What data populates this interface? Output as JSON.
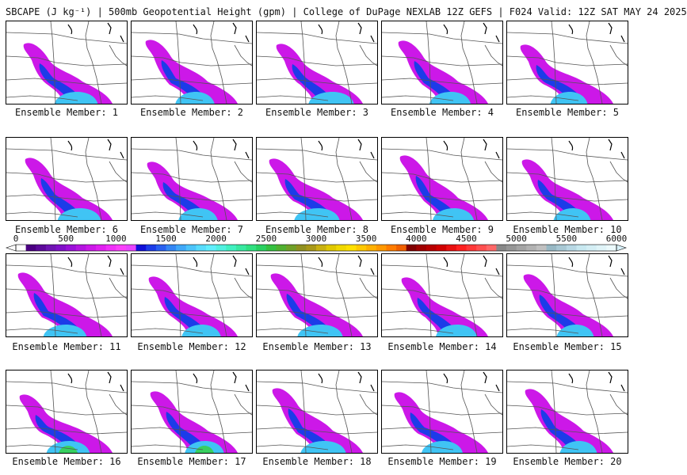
{
  "title": "SBCAPE (J kg⁻¹) | 500mb Geopotential Height (gpm) | College of DuPage NEXLAB 12Z GEFS | F024 Valid: 12Z SAT MAY 24 2025",
  "caption_prefix": "Ensemble Member: ",
  "members": [
    1,
    2,
    3,
    4,
    5,
    6,
    7,
    8,
    9,
    10,
    11,
    12,
    13,
    14,
    15,
    16,
    17,
    18,
    19,
    20
  ],
  "colorbar": {
    "labels": [
      "0",
      "500",
      "1000",
      "1500",
      "2000",
      "2500",
      "3000",
      "3500",
      "4000",
      "4500",
      "5000",
      "5500",
      "6000"
    ],
    "min": 0,
    "max": 6000,
    "colors": [
      "#ffffff",
      "#4b0082",
      "#5c0a9a",
      "#6e14b2",
      "#8010c8",
      "#9a10d8",
      "#b414e0",
      "#cc18e8",
      "#e020f0",
      "#f030f8",
      "#fa40fa",
      "#e844ff",
      "#1010d8",
      "#1c3ce8",
      "#2860f0",
      "#3486f4",
      "#40a8f8",
      "#4cc4fa",
      "#58dcfc",
      "#60eefc",
      "#50f0e0",
      "#40f0c0",
      "#38e8a0",
      "#30e080",
      "#28d060",
      "#34c040",
      "#50b030",
      "#70a028",
      "#909020",
      "#a89818",
      "#c8b010",
      "#e0c800",
      "#f0d800",
      "#ffe000",
      "#ffc800",
      "#ffb000",
      "#ff9800",
      "#ff7c00",
      "#f06000",
      "#800000",
      "#a00000",
      "#b80000",
      "#d00000",
      "#e81010",
      "#ff2020",
      "#ff3838",
      "#ff5050",
      "#ff6868",
      "#888888",
      "#969696",
      "#a4a4a4",
      "#b2b2b2",
      "#c0c0c0",
      "#98b8c4",
      "#a8c8d4",
      "#b8d8e4",
      "#c8e8f0",
      "#d4eef4",
      "#e0f4f8",
      "#ecfafc"
    ]
  },
  "colors": {
    "cape_outer": "#cc18e8",
    "cape_mid": "#1c3ce8",
    "cape_high": "#40c4f4",
    "cape_peak": "#38d060",
    "lines": "#555555"
  }
}
